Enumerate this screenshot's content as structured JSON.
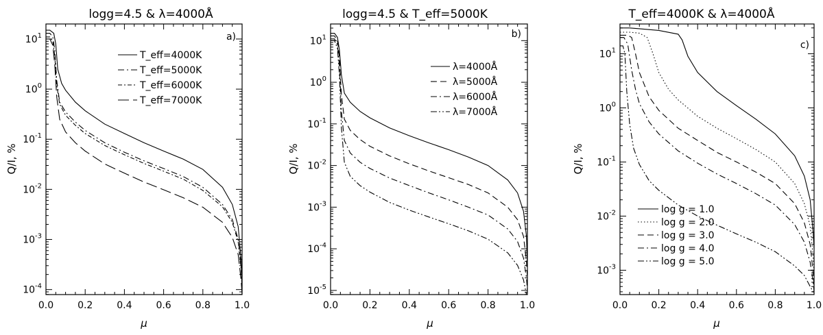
{
  "chart_data": [
    {
      "type": "line",
      "panel_label": "a)",
      "title": "logg=4.5 & λ=4000Å",
      "xlabel": "μ",
      "ylabel": "Q/I, %",
      "xlim": [
        0.0,
        1.0
      ],
      "ylim_log10": [
        -4.1,
        1.3
      ],
      "yscale": "log",
      "xticks": [
        "0.0",
        "0.2",
        "0.4",
        "0.6",
        "0.8",
        "1.0"
      ],
      "yticks": [
        {
          "base": "10",
          "exp": "1"
        },
        {
          "base": "10",
          "exp": "0"
        },
        {
          "base": "10",
          "exp": "-1"
        },
        {
          "base": "10",
          "exp": "-2"
        },
        {
          "base": "10",
          "exp": "-3"
        },
        {
          "base": "10",
          "exp": "-4"
        }
      ],
      "legend_position": "top-right",
      "series": [
        {
          "name": "T_eff=4000K",
          "dash": "solid",
          "x": [
            0.0,
            0.02,
            0.04,
            0.05,
            0.06,
            0.08,
            0.1,
            0.15,
            0.2,
            0.3,
            0.4,
            0.5,
            0.6,
            0.7,
            0.8,
            0.9,
            0.95,
            0.98,
            0.995,
            1.0
          ],
          "y": [
            15.0,
            15.0,
            13.0,
            8.0,
            2.5,
            1.3,
            0.95,
            0.55,
            0.37,
            0.2,
            0.13,
            0.085,
            0.058,
            0.04,
            0.025,
            0.011,
            0.005,
            0.0018,
            0.0004,
            0.00012
          ]
        },
        {
          "name": "T_eff=5000K",
          "dash": "dashdot",
          "x": [
            0.0,
            0.02,
            0.035,
            0.045,
            0.055,
            0.07,
            0.1,
            0.15,
            0.2,
            0.3,
            0.4,
            0.5,
            0.6,
            0.7,
            0.8,
            0.9,
            0.95,
            0.98,
            0.995,
            1.0
          ],
          "y": [
            13.0,
            13.0,
            11.0,
            6.0,
            1.5,
            0.55,
            0.35,
            0.22,
            0.15,
            0.085,
            0.055,
            0.037,
            0.026,
            0.018,
            0.011,
            0.005,
            0.0025,
            0.001,
            0.0003,
            0.0001
          ]
        },
        {
          "name": "T_eff=6000K",
          "dash": "dashdot2",
          "x": [
            0.0,
            0.02,
            0.035,
            0.045,
            0.055,
            0.07,
            0.1,
            0.15,
            0.2,
            0.3,
            0.4,
            0.5,
            0.6,
            0.7,
            0.8,
            0.9,
            0.95,
            0.98,
            0.995,
            1.0
          ],
          "y": [
            11.0,
            11.0,
            9.0,
            4.5,
            1.2,
            0.5,
            0.3,
            0.19,
            0.13,
            0.075,
            0.049,
            0.033,
            0.023,
            0.016,
            0.0095,
            0.0045,
            0.0022,
            0.0009,
            0.00025,
            0.0001
          ]
        },
        {
          "name": "T_eff=7000K",
          "dash": "longdash",
          "x": [
            0.0,
            0.02,
            0.035,
            0.045,
            0.055,
            0.07,
            0.1,
            0.15,
            0.2,
            0.3,
            0.4,
            0.5,
            0.6,
            0.7,
            0.8,
            0.9,
            0.95,
            0.98,
            0.995,
            1.0
          ],
          "y": [
            10.0,
            10.0,
            7.5,
            3.0,
            0.7,
            0.25,
            0.14,
            0.085,
            0.058,
            0.032,
            0.021,
            0.014,
            0.0098,
            0.0068,
            0.0044,
            0.0022,
            0.0011,
            0.0005,
            0.00015,
            8e-05
          ]
        }
      ]
    },
    {
      "type": "line",
      "panel_label": "b)",
      "title": "logg=4.5 & T_eff=5000K",
      "xlabel": "μ",
      "ylabel": "Q/I, %",
      "xlim": [
        0.0,
        1.0
      ],
      "ylim_log10": [
        -5.1,
        1.4
      ],
      "yscale": "log",
      "xticks": [
        "0.0",
        "0.2",
        "0.4",
        "0.6",
        "0.8",
        "1.0"
      ],
      "yticks": [
        {
          "base": "10",
          "exp": "1"
        },
        {
          "base": "10",
          "exp": "0"
        },
        {
          "base": "10",
          "exp": "-1"
        },
        {
          "base": "10",
          "exp": "-2"
        },
        {
          "base": "10",
          "exp": "-3"
        },
        {
          "base": "10",
          "exp": "-4"
        },
        {
          "base": "10",
          "exp": "-5"
        }
      ],
      "legend_position": "top-right",
      "series": [
        {
          "name": "λ=4000Å",
          "dash": "solid",
          "x": [
            0.0,
            0.02,
            0.035,
            0.045,
            0.055,
            0.07,
            0.1,
            0.15,
            0.2,
            0.3,
            0.4,
            0.5,
            0.6,
            0.7,
            0.8,
            0.9,
            0.95,
            0.98,
            0.995,
            1.0
          ],
          "y": [
            15.0,
            15.0,
            12.0,
            6.0,
            1.5,
            0.55,
            0.33,
            0.2,
            0.14,
            0.08,
            0.052,
            0.035,
            0.024,
            0.016,
            0.01,
            0.0045,
            0.0022,
            0.0008,
            0.0002,
            4e-05
          ]
        },
        {
          "name": "λ=5000Å",
          "dash": "dash",
          "x": [
            0.0,
            0.02,
            0.035,
            0.045,
            0.055,
            0.07,
            0.1,
            0.15,
            0.2,
            0.3,
            0.4,
            0.5,
            0.6,
            0.7,
            0.8,
            0.9,
            0.95,
            0.98,
            0.995,
            1.0
          ],
          "y": [
            13.0,
            13.0,
            10.0,
            4.0,
            0.5,
            0.13,
            0.07,
            0.042,
            0.029,
            0.017,
            0.011,
            0.0074,
            0.0051,
            0.0035,
            0.0022,
            0.001,
            0.0005,
            0.0002,
            5e-05,
            2e-05
          ]
        },
        {
          "name": "λ=6000Å",
          "dash": "dashdot",
          "x": [
            0.0,
            0.02,
            0.035,
            0.045,
            0.055,
            0.07,
            0.1,
            0.15,
            0.2,
            0.3,
            0.4,
            0.5,
            0.6,
            0.7,
            0.8,
            0.9,
            0.95,
            0.98,
            0.995,
            1.0
          ],
          "y": [
            11.0,
            11.0,
            8.0,
            2.5,
            0.2,
            0.04,
            0.02,
            0.012,
            0.0085,
            0.005,
            0.0033,
            0.0022,
            0.0015,
            0.001,
            0.00065,
            0.0003,
            0.00015,
            6e-05,
            2e-05,
            1e-05
          ]
        },
        {
          "name": "λ=7000Å",
          "dash": "dashdotdot",
          "x": [
            0.0,
            0.02,
            0.035,
            0.045,
            0.055,
            0.07,
            0.1,
            0.15,
            0.2,
            0.3,
            0.4,
            0.5,
            0.6,
            0.7,
            0.8,
            0.9,
            0.95,
            0.98,
            0.995,
            1.0
          ],
          "y": [
            10.0,
            10.0,
            6.5,
            1.5,
            0.08,
            0.012,
            0.0055,
            0.0033,
            0.0023,
            0.0013,
            0.00085,
            0.00058,
            0.0004,
            0.00027,
            0.00017,
            8e-05,
            4e-05,
            1.8e-05,
            8e-06,
            5e-06
          ]
        }
      ]
    },
    {
      "type": "line",
      "panel_label": "c)",
      "title": "T_eff=4000K & λ=4000Å",
      "xlabel": "μ",
      "ylabel": "Q/I, %",
      "xlim": [
        0.0,
        1.0
      ],
      "ylim_log10": [
        -3.45,
        1.55
      ],
      "yscale": "log",
      "xticks": [
        "0.0",
        "0.2",
        "0.4",
        "0.6",
        "0.8",
        "1.0"
      ],
      "yticks": [
        {
          "base": "10",
          "exp": "1"
        },
        {
          "base": "10",
          "exp": "0"
        },
        {
          "base": "10",
          "exp": "-1"
        },
        {
          "base": "10",
          "exp": "-2"
        },
        {
          "base": "10",
          "exp": "-3"
        }
      ],
      "legend_position": "bottom-left",
      "series": [
        {
          "name": "log g = 1.0",
          "dash": "solid",
          "x": [
            0.0,
            0.02,
            0.05,
            0.1,
            0.2,
            0.3,
            0.32,
            0.35,
            0.4,
            0.5,
            0.6,
            0.7,
            0.8,
            0.9,
            0.95,
            0.98,
            0.995,
            1.0
          ],
          "y": [
            30.0,
            30.0,
            30.0,
            29.0,
            27.0,
            23.0,
            18.0,
            9.0,
            4.5,
            2.0,
            1.1,
            0.62,
            0.33,
            0.13,
            0.055,
            0.02,
            0.005,
            0.0025
          ]
        },
        {
          "name": "log g = 2.0",
          "dash": "dot",
          "x": [
            0.0,
            0.05,
            0.1,
            0.14,
            0.17,
            0.2,
            0.25,
            0.3,
            0.4,
            0.5,
            0.6,
            0.7,
            0.8,
            0.9,
            0.95,
            0.98,
            0.995,
            1.0
          ],
          "y": [
            25.0,
            25.0,
            24.0,
            20.0,
            10.0,
            4.5,
            2.2,
            1.4,
            0.7,
            0.42,
            0.27,
            0.17,
            0.1,
            0.04,
            0.017,
            0.0065,
            0.0018,
            0.0009
          ]
        },
        {
          "name": "log g = 3.0",
          "dash": "dash",
          "x": [
            0.0,
            0.04,
            0.06,
            0.08,
            0.1,
            0.15,
            0.2,
            0.3,
            0.4,
            0.5,
            0.6,
            0.7,
            0.8,
            0.9,
            0.95,
            0.98,
            0.995,
            1.0
          ],
          "y": [
            22.0,
            22.0,
            20.0,
            10.0,
            4.5,
            1.6,
            0.9,
            0.42,
            0.25,
            0.15,
            0.1,
            0.065,
            0.04,
            0.017,
            0.0075,
            0.003,
            0.0009,
            0.0005
          ]
        },
        {
          "name": "log g = 4.0",
          "dash": "dashdot",
          "x": [
            0.0,
            0.02,
            0.04,
            0.06,
            0.08,
            0.1,
            0.15,
            0.2,
            0.3,
            0.4,
            0.5,
            0.6,
            0.7,
            0.8,
            0.9,
            0.95,
            0.98,
            0.995,
            1.0
          ],
          "y": [
            20.0,
            20.0,
            15.0,
            5.0,
            2.2,
            1.2,
            0.55,
            0.33,
            0.16,
            0.095,
            0.06,
            0.04,
            0.026,
            0.016,
            0.007,
            0.0033,
            0.0014,
            0.0006,
            0.0004
          ]
        },
        {
          "name": "log g = 5.0",
          "dash": "dashdotdot",
          "x": [
            0.0,
            0.015,
            0.025,
            0.035,
            0.05,
            0.07,
            0.1,
            0.15,
            0.2,
            0.3,
            0.4,
            0.5,
            0.6,
            0.7,
            0.8,
            0.9,
            0.95,
            0.98,
            0.995,
            1.0
          ],
          "y": [
            14.0,
            14.0,
            10.0,
            2.0,
            0.5,
            0.18,
            0.09,
            0.045,
            0.03,
            0.016,
            0.01,
            0.0068,
            0.0047,
            0.0033,
            0.0022,
            0.0012,
            0.0008,
            0.0005,
            0.0004,
            0.00035
          ]
        }
      ]
    }
  ]
}
